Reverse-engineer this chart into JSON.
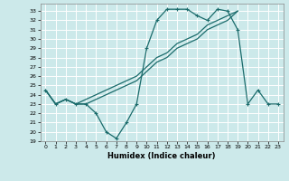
{
  "xlabel": "Humidex (Indice chaleur)",
  "bg_color": "#cce9ea",
  "line_color": "#1a6b6b",
  "grid_color": "#ffffff",
  "xlim": [
    -0.5,
    23.5
  ],
  "ylim": [
    19,
    33.8
  ],
  "yticks": [
    19,
    20,
    21,
    22,
    23,
    24,
    25,
    26,
    27,
    28,
    29,
    30,
    31,
    32,
    33
  ],
  "xticks": [
    0,
    1,
    2,
    3,
    4,
    5,
    6,
    7,
    8,
    9,
    10,
    11,
    12,
    13,
    14,
    15,
    16,
    17,
    18,
    19,
    20,
    21,
    22,
    23
  ],
  "curve1_x": [
    0,
    1,
    2,
    3,
    4,
    5,
    6,
    7,
    8,
    9,
    10,
    11,
    12,
    13,
    14,
    15,
    16,
    17,
    18,
    19,
    20,
    21,
    22,
    23
  ],
  "curve1_y": [
    24.5,
    23.0,
    23.5,
    23.0,
    23.0,
    22.0,
    20.0,
    19.3,
    21.0,
    23.0,
    29.0,
    32.0,
    33.2,
    33.2,
    33.2,
    32.5,
    32.0,
    33.2,
    33.0,
    31.0,
    23.0,
    24.5,
    23.0,
    23.0
  ],
  "curve2_x": [
    0,
    1,
    2,
    3,
    4,
    5,
    6,
    7,
    8,
    9,
    10,
    11,
    12,
    13,
    14,
    15,
    16,
    17,
    18,
    19
  ],
  "curve2_y": [
    24.5,
    23.0,
    23.5,
    23.0,
    23.5,
    24.0,
    24.5,
    25.0,
    25.5,
    26.0,
    27.0,
    28.0,
    28.5,
    29.5,
    30.0,
    30.5,
    31.5,
    32.0,
    32.5,
    33.0
  ],
  "curve3_x": [
    0,
    1,
    2,
    3,
    4,
    5,
    6,
    7,
    8,
    9,
    10,
    11,
    12,
    13,
    14,
    15,
    16,
    17,
    18,
    19
  ],
  "curve3_y": [
    24.5,
    23.0,
    23.5,
    23.0,
    23.0,
    23.5,
    24.0,
    24.5,
    25.0,
    25.5,
    26.5,
    27.5,
    28.0,
    29.0,
    29.5,
    30.0,
    31.0,
    31.5,
    32.0,
    33.0
  ]
}
